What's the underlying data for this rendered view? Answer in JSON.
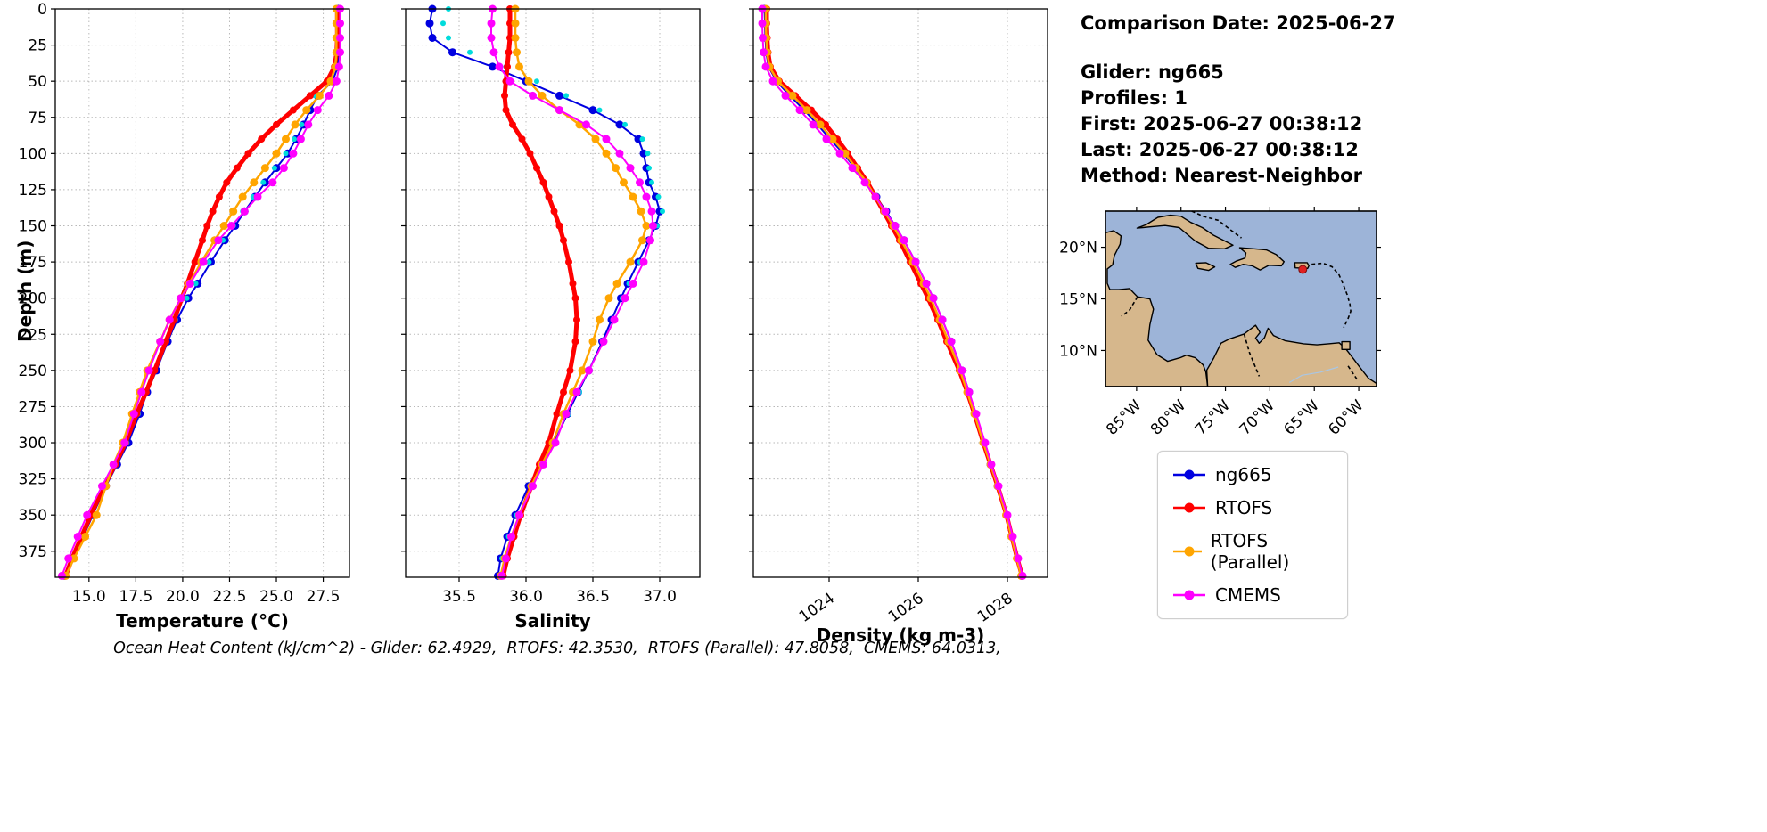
{
  "info_panel": {
    "comparison_date": "Comparison Date: 2025-06-27",
    "glider": "Glider: ng665",
    "profiles": "Profiles: 1",
    "first": "First: 2025-06-27 00:38:12",
    "last": "Last: 2025-06-27 00:38:12",
    "method": "Method: Nearest-Neighbor"
  },
  "caption": "Ocean Heat Content (kJ/cm^2) - Glider: 62.4929,  RTOFS: 42.3530,  RTOFS (Parallel): 47.8058,  CMEMS: 64.0313,",
  "legend": {
    "entries": [
      {
        "label": "ng665",
        "color": "#0000e0"
      },
      {
        "label": "RTOFS",
        "color": "#ff0000"
      },
      {
        "label": "RTOFS (Parallel)",
        "color": "#ffa500"
      },
      {
        "label": "CMEMS",
        "color": "#ff00ff"
      }
    ]
  },
  "map": {
    "ocean_color": "#9db4d8",
    "land_color": "#d6b78c",
    "coast_color": "#000000",
    "extent": {
      "lon_min": -88.5,
      "lon_max": -58.0,
      "lat_min": 6.5,
      "lat_max": 23.5
    },
    "lon_ticks": [
      {
        "value": -85,
        "label": "85°W"
      },
      {
        "value": -80,
        "label": "80°W"
      },
      {
        "value": -75,
        "label": "75°W"
      },
      {
        "value": -70,
        "label": "70°W"
      },
      {
        "value": -65,
        "label": "65°W"
      },
      {
        "value": -60,
        "label": "60°W"
      }
    ],
    "lat_ticks": [
      {
        "value": 20,
        "label": "20°N"
      },
      {
        "value": 15,
        "label": "15°N"
      },
      {
        "value": 10,
        "label": "10°N"
      }
    ],
    "marker": {
      "lon": -66.3,
      "lat": 17.85,
      "color": "#e02020"
    }
  },
  "chart_data": {
    "type": "line",
    "orientation": "vertical-profile",
    "grid": true,
    "legend_position": "right-bottom",
    "ylabel": "Depth (m)",
    "ylim": [
      0,
      393
    ],
    "yticks": [
      0,
      25,
      50,
      75,
      100,
      125,
      150,
      175,
      200,
      225,
      250,
      275,
      300,
      325,
      350,
      375
    ],
    "ytick_labels": [
      "0",
      "25",
      "50",
      "75",
      "100",
      "125",
      "150",
      "175",
      "200",
      "225",
      "250",
      "275",
      "300",
      "325",
      "350",
      "375"
    ],
    "depths": [
      0,
      10,
      20,
      30,
      40,
      50,
      60,
      70,
      80,
      90,
      100,
      110,
      120,
      130,
      140,
      150,
      160,
      175,
      190,
      200,
      215,
      230,
      250,
      265,
      280,
      300,
      315,
      330,
      350,
      365,
      380,
      392
    ],
    "series_style": [
      {
        "key": "ng665",
        "label": "ng665",
        "color": "#0000e0",
        "line": true,
        "width": 2,
        "marker_r": 4.5
      },
      {
        "key": "glider_scatter",
        "label": "glider raw (cyan scatter)",
        "color": "#00dcdc",
        "line": false,
        "width": 0,
        "marker_r": 3
      },
      {
        "key": "RTOFS",
        "label": "RTOFS",
        "color": "#ff0000",
        "line": true,
        "width": 5,
        "marker_r": 4
      },
      {
        "key": "RTOFS_parallel",
        "label": "RTOFS (Parallel)",
        "color": "#ffa500",
        "line": true,
        "width": 2.5,
        "marker_r": 4.5
      },
      {
        "key": "CMEMS",
        "label": "CMEMS",
        "color": "#ff00ff",
        "line": true,
        "width": 2,
        "marker_r": 4.5
      }
    ],
    "panels": [
      {
        "xlabel": "Temperature (°C)",
        "xlim": [
          13.2,
          28.9
        ],
        "xticks": [
          15.0,
          17.5,
          20.0,
          22.5,
          25.0,
          27.5
        ],
        "xtick_labels": [
          "15.0",
          "17.5",
          "20.0",
          "22.5",
          "25.0",
          "27.5"
        ],
        "xtick_rotation": 0,
        "series": {
          "ng665": [
            28.3,
            28.32,
            28.3,
            28.33,
            28.28,
            28.0,
            27.2,
            26.8,
            26.45,
            26.05,
            25.6,
            25.0,
            24.4,
            23.85,
            23.3,
            22.8,
            22.25,
            21.5,
            20.8,
            20.3,
            19.7,
            19.2,
            18.6,
            18.1,
            17.7,
            17.1,
            16.5,
            15.9,
            15.2,
            14.7,
            14.1,
            13.7
          ],
          "glider_scatter": [
            28.28,
            28.3,
            28.27,
            28.31,
            28.25,
            27.9,
            27.05,
            26.7,
            26.35,
            25.95,
            25.5,
            24.9,
            24.3,
            23.75,
            23.2,
            22.7,
            22.15,
            21.4,
            20.7,
            20.22,
            19.62,
            19.12,
            18.52,
            18.02,
            17.62,
            17.02,
            16.42,
            15.82,
            15.12,
            14.62,
            14.02,
            13.65
          ],
          "RTOFS": [
            28.25,
            28.25,
            28.25,
            28.22,
            28.1,
            27.7,
            26.8,
            25.9,
            25.0,
            24.2,
            23.5,
            22.9,
            22.35,
            21.95,
            21.6,
            21.3,
            21.05,
            20.65,
            20.25,
            19.95,
            19.55,
            19.1,
            18.5,
            18.05,
            17.55,
            16.95,
            16.4,
            15.8,
            15.1,
            14.6,
            14.1,
            13.75
          ],
          "RTOFS_parallel": [
            28.2,
            28.2,
            28.2,
            28.2,
            28.15,
            27.9,
            27.3,
            26.6,
            26.0,
            25.5,
            25.0,
            24.4,
            23.8,
            23.2,
            22.7,
            22.2,
            21.7,
            21.0,
            20.35,
            19.9,
            19.3,
            18.8,
            18.1,
            17.7,
            17.3,
            16.8,
            16.3,
            15.9,
            15.4,
            14.8,
            14.2,
            13.75
          ],
          "CMEMS": [
            28.4,
            28.4,
            28.4,
            28.4,
            28.35,
            28.2,
            27.8,
            27.2,
            26.7,
            26.3,
            25.9,
            25.4,
            24.8,
            24.0,
            23.3,
            22.6,
            21.9,
            21.1,
            20.4,
            19.9,
            19.3,
            18.8,
            18.2,
            17.8,
            17.4,
            16.9,
            16.3,
            15.7,
            14.9,
            14.4,
            13.9,
            13.55
          ]
        }
      },
      {
        "xlabel": "Salinity",
        "xlim": [
          35.1,
          37.3
        ],
        "xticks": [
          35.5,
          36.0,
          36.5,
          37.0
        ],
        "xtick_labels": [
          "35.5",
          "36.0",
          "36.5",
          "37.0"
        ],
        "xtick_rotation": 0,
        "series": {
          "ng665": [
            35.3,
            35.28,
            35.3,
            35.45,
            35.75,
            36.0,
            36.25,
            36.5,
            36.7,
            36.84,
            36.88,
            36.9,
            36.92,
            36.97,
            37.0,
            36.97,
            36.92,
            36.84,
            36.76,
            36.71,
            36.64,
            36.57,
            36.47,
            36.39,
            36.31,
            36.21,
            36.11,
            36.02,
            35.92,
            35.86,
            35.81,
            35.79
          ],
          "glider_scatter": [
            35.42,
            35.38,
            35.42,
            35.58,
            35.85,
            36.08,
            36.3,
            36.55,
            36.74,
            36.87,
            36.91,
            36.92,
            36.94,
            36.99,
            37.02,
            36.98,
            36.93,
            36.85,
            36.77,
            36.72,
            36.65,
            36.58,
            36.48,
            36.4,
            36.32,
            36.22,
            36.12,
            36.03,
            35.93,
            35.87,
            35.82,
            35.8
          ],
          "RTOFS": [
            35.88,
            35.88,
            35.88,
            35.87,
            35.86,
            35.85,
            35.84,
            35.85,
            35.9,
            35.97,
            36.03,
            36.08,
            36.13,
            36.17,
            36.21,
            36.25,
            36.28,
            36.32,
            36.35,
            36.37,
            36.38,
            36.37,
            36.33,
            36.28,
            36.23,
            36.17,
            36.1,
            36.04,
            35.96,
            35.91,
            35.86,
            35.83
          ],
          "RTOFS_parallel": [
            35.92,
            35.92,
            35.92,
            35.93,
            35.95,
            36.02,
            36.12,
            36.25,
            36.4,
            36.52,
            36.6,
            36.67,
            36.73,
            36.8,
            36.86,
            36.9,
            36.87,
            36.78,
            36.68,
            36.62,
            36.55,
            36.5,
            36.42,
            36.35,
            36.28,
            36.2,
            36.12,
            36.04,
            35.95,
            35.89,
            35.84,
            35.81
          ],
          "CMEMS": [
            35.75,
            35.74,
            35.74,
            35.76,
            35.8,
            35.88,
            36.05,
            36.25,
            36.45,
            36.6,
            36.7,
            36.78,
            36.85,
            36.9,
            36.94,
            36.95,
            36.93,
            36.88,
            36.8,
            36.74,
            36.66,
            36.58,
            36.47,
            36.38,
            36.3,
            36.22,
            36.13,
            36.05,
            35.95,
            35.89,
            35.85,
            35.82
          ]
        }
      },
      {
        "xlabel": "Density (kg m-3)",
        "xlim": [
          1022.3,
          1028.9
        ],
        "xticks": [
          1024,
          1026,
          1028
        ],
        "xtick_labels": [
          "1024",
          "1026",
          "1028"
        ],
        "xtick_rotation": -35,
        "series": {
          "ng665": [
            1022.55,
            1022.56,
            1022.57,
            1022.59,
            1022.64,
            1022.82,
            1023.12,
            1023.44,
            1023.74,
            1024.02,
            1024.32,
            1024.58,
            1024.84,
            1025.06,
            1025.28,
            1025.48,
            1025.68,
            1025.94,
            1026.18,
            1026.34,
            1026.54,
            1026.74,
            1026.98,
            1027.14,
            1027.28,
            1027.48,
            1027.62,
            1027.78,
            1027.98,
            1028.1,
            1028.22,
            1028.32
          ],
          "glider_scatter": [
            1022.53,
            1022.54,
            1022.55,
            1022.57,
            1022.62,
            1022.8,
            1023.1,
            1023.42,
            1023.72,
            1024.0,
            1024.3,
            1024.56,
            1024.82,
            1025.04,
            1025.26,
            1025.46,
            1025.66,
            1025.92,
            1026.16,
            1026.32,
            1026.52,
            1026.72,
            1026.96,
            1027.12,
            1027.26,
            1027.46,
            1027.6,
            1027.76,
            1027.96,
            1028.08,
            1028.2,
            1028.3
          ],
          "RTOFS": [
            1022.6,
            1022.6,
            1022.61,
            1022.63,
            1022.68,
            1022.88,
            1023.24,
            1023.6,
            1023.92,
            1024.18,
            1024.42,
            1024.64,
            1024.86,
            1025.04,
            1025.22,
            1025.4,
            1025.58,
            1025.82,
            1026.06,
            1026.22,
            1026.44,
            1026.64,
            1026.92,
            1027.1,
            1027.26,
            1027.46,
            1027.62,
            1027.78,
            1027.98,
            1028.1,
            1028.22,
            1028.33
          ],
          "RTOFS_parallel": [
            1022.58,
            1022.58,
            1022.59,
            1022.61,
            1022.66,
            1022.85,
            1023.18,
            1023.5,
            1023.8,
            1024.08,
            1024.36,
            1024.6,
            1024.84,
            1025.04,
            1025.24,
            1025.44,
            1025.62,
            1025.88,
            1026.12,
            1026.28,
            1026.48,
            1026.68,
            1026.94,
            1027.1,
            1027.26,
            1027.46,
            1027.62,
            1027.78,
            1027.97,
            1028.09,
            1028.21,
            1028.31
          ],
          "CMEMS": [
            1022.5,
            1022.5,
            1022.51,
            1022.53,
            1022.58,
            1022.74,
            1023.02,
            1023.34,
            1023.64,
            1023.94,
            1024.24,
            1024.52,
            1024.8,
            1025.04,
            1025.26,
            1025.48,
            1025.68,
            1025.94,
            1026.18,
            1026.34,
            1026.54,
            1026.74,
            1026.98,
            1027.14,
            1027.3,
            1027.5,
            1027.64,
            1027.8,
            1028.0,
            1028.12,
            1028.24,
            1028.34
          ]
        }
      }
    ]
  }
}
